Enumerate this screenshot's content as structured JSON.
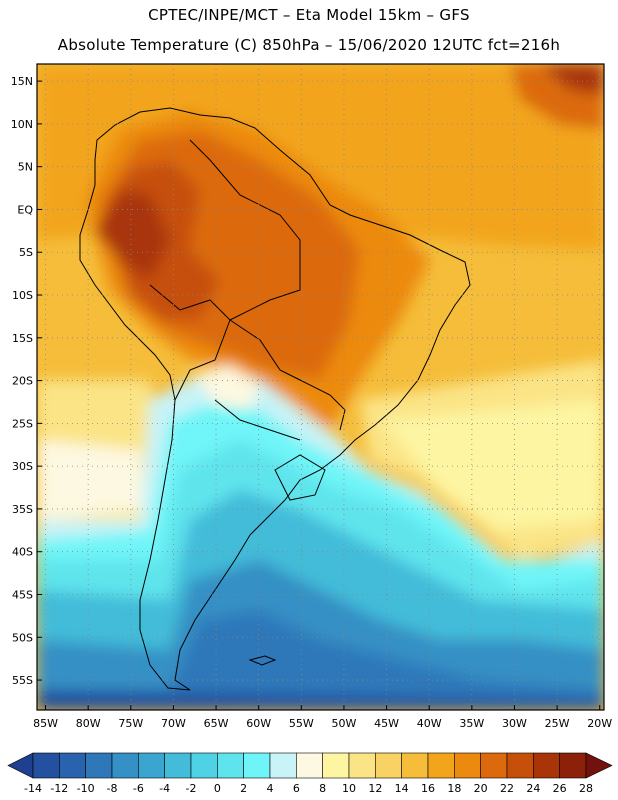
{
  "header": {
    "line1": "CPTEC/INPE/MCT –  Eta Model 15km – GFS",
    "line2": "Absolute Temperature (C) 850hPa – 15/06/2020 12UTC fct=216h"
  },
  "map": {
    "lat_labels": [
      "15N",
      "10N",
      "5N",
      "EQ",
      "5S",
      "10S",
      "15S",
      "20S",
      "25S",
      "30S",
      "35S",
      "40S",
      "45S",
      "50S",
      "55S"
    ],
    "lon_labels": [
      "85W",
      "80W",
      "75W",
      "70W",
      "65W",
      "60W",
      "55W",
      "50W",
      "45W",
      "40W",
      "35W",
      "30W",
      "25W",
      "20W"
    ],
    "lat_range": [
      17,
      -58.5
    ],
    "lon_range": [
      -86,
      -19.5
    ]
  },
  "colorbar": {
    "values": [
      "-14",
      "-12",
      "-10",
      "-8",
      "-6",
      "-4",
      "-2",
      "0",
      "2",
      "4",
      "6",
      "8",
      "10",
      "12",
      "14",
      "16",
      "18",
      "20",
      "22",
      "24",
      "26",
      "28"
    ],
    "colors": [
      "#1f3f8f",
      "#23509f",
      "#2962ad",
      "#2e78ba",
      "#3490c5",
      "#3aa6cf",
      "#42bcd9",
      "#4fd2e3",
      "#5ee4ec",
      "#6ff5f8",
      "#c8f3f7",
      "#fdf8e1",
      "#fdf5a2",
      "#fbe486",
      "#f8d262",
      "#f5bd3a",
      "#f2a51a",
      "#ec8a10",
      "#dc6a0c",
      "#c65009",
      "#a83408",
      "#8c2009",
      "#72120c"
    ]
  }
}
